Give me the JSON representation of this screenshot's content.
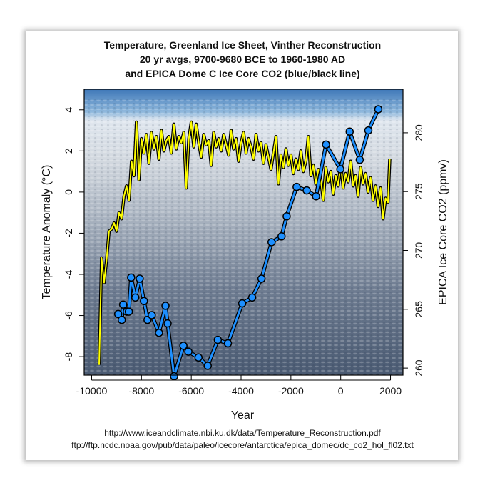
{
  "chart_data": {
    "type": "line",
    "title": [
      "Temperature, Greenland Ice Sheet, Vinther Reconstruction",
      "20 yr avgs, 9700-9680 BCE to 1960-1980 AD",
      "and EPICA Dome C Ice Core CO2 (blue/black line)"
    ],
    "xlabel": "Year",
    "ylabel_left": "Temperature Anomaly (°C)",
    "ylabel_right": "EPICA Ice Core CO2 (ppmv)",
    "xlim": [
      -10300,
      2500
    ],
    "ylim_left": [
      -8.9,
      5.0
    ],
    "ylim_right": [
      259.4,
      283.7
    ],
    "xticks": [
      -10000,
      -8000,
      -6000,
      -4000,
      -2000,
      0,
      2000
    ],
    "xtick_labels": [
      "-10000",
      "-8000",
      "-6000",
      "-4000",
      "-2000",
      "0",
      "2000"
    ],
    "yticks_left": [
      -8,
      -6,
      -4,
      -2,
      0,
      2,
      4
    ],
    "ytick_labels_left": [
      "-8",
      "-6",
      "-4",
      "-2",
      "0",
      "2",
      "4"
    ],
    "yticks_right": [
      260,
      265,
      270,
      275,
      280
    ],
    "ytick_labels_right": [
      "260",
      "265",
      "270",
      "275",
      "280"
    ],
    "grid": false,
    "background": "photo of Greenland ice sheet under blue sky",
    "series": [
      {
        "axis": "left",
        "color": "#FFFF00",
        "outline": "#000000",
        "x": [
          -9700,
          -9600,
          -9500,
          -9400,
          -9300,
          -9200,
          -9100,
          -9000,
          -8900,
          -8800,
          -8700,
          -8600,
          -8500,
          -8400,
          -8300,
          -8200,
          -8100,
          -8000,
          -7900,
          -7800,
          -7700,
          -7600,
          -7500,
          -7400,
          -7300,
          -7200,
          -7100,
          -7000,
          -6900,
          -6800,
          -6700,
          -6600,
          -6500,
          -6400,
          -6300,
          -6200,
          -6100,
          -6000,
          -5900,
          -5800,
          -5700,
          -5600,
          -5500,
          -5400,
          -5300,
          -5200,
          -5100,
          -5000,
          -4900,
          -4800,
          -4700,
          -4600,
          -4500,
          -4400,
          -4300,
          -4200,
          -4100,
          -4000,
          -3900,
          -3800,
          -3700,
          -3600,
          -3500,
          -3400,
          -3300,
          -3200,
          -3100,
          -3000,
          -2900,
          -2800,
          -2700,
          -2600,
          -2500,
          -2400,
          -2300,
          -2200,
          -2100,
          -2000,
          -1900,
          -1800,
          -1700,
          -1600,
          -1500,
          -1400,
          -1300,
          -1200,
          -1100,
          -1000,
          -900,
          -800,
          -700,
          -600,
          -500,
          -400,
          -300,
          -200,
          -100,
          0,
          100,
          200,
          300,
          400,
          500,
          600,
          700,
          800,
          900,
          1000,
          1100,
          1200,
          1300,
          1400,
          1500,
          1600,
          1700,
          1800,
          1900,
          1970
        ],
        "y": [
          -8.4,
          -3.2,
          -4.4,
          -3.3,
          -1.9,
          -1.8,
          -1.5,
          -1.9,
          -1.0,
          -1.3,
          -0.2,
          0.3,
          -0.4,
          1.5,
          0.8,
          3.4,
          0.6,
          2.6,
          1.9,
          2.8,
          1.4,
          2.9,
          2.1,
          2.7,
          1.6,
          3.0,
          2.0,
          2.5,
          2.7,
          1.9,
          3.3,
          2.1,
          2.7,
          2.4,
          2.9,
          0.2,
          2.6,
          3.4,
          2.2,
          3.3,
          2.4,
          1.7,
          2.8,
          2.3,
          2.5,
          1.3,
          2.9,
          2.2,
          2.6,
          2.0,
          2.8,
          2.3,
          1.8,
          3.0,
          2.1,
          2.6,
          1.5,
          2.4,
          2.9,
          1.9,
          2.6,
          2.2,
          1.6,
          2.8,
          2.0,
          2.4,
          1.4,
          2.3,
          1.7,
          1.1,
          1.9,
          2.7,
          0.4,
          1.8,
          1.2,
          2.1,
          1.3,
          1.8,
          0.9,
          1.6,
          1.1,
          2.0,
          1.0,
          1.5,
          2.7,
          0.8,
          1.3,
          0.4,
          1.1,
          0.6,
          -0.4,
          1.2,
          0.5,
          1.0,
          -0.1,
          0.8,
          0.3,
          1.4,
          0.2,
          0.9,
          0.5,
          1.5,
          0.3,
          0.8,
          -0.2,
          1.2,
          0.4,
          0.9,
          0.0,
          0.7,
          -0.4,
          0.3,
          -0.7,
          0.2,
          -1.3,
          -0.3,
          -0.5,
          1.6
        ]
      },
      {
        "axis": "right",
        "color": "#1E90FF",
        "outline": "#000000",
        "markers": true,
        "x": [
          -8935,
          -8790,
          -8735,
          -8590,
          -8505,
          -8415,
          -8245,
          -8070,
          -7900,
          -7755,
          -7585,
          -7295,
          -7035,
          -6950,
          -6690,
          -6315,
          -6115,
          -5710,
          -5340,
          -4935,
          -4530,
          -3955,
          -3555,
          -3180,
          -2775,
          -2375,
          -2170,
          -1770,
          -1365,
          -990,
          -590,
          -15,
          360,
          765,
          1110,
          1510
        ],
        "y": [
          264.6,
          264.1,
          265.4,
          264.8,
          264.8,
          267.7,
          266.0,
          267.6,
          265.7,
          264.1,
          264.5,
          263.0,
          265.3,
          263.8,
          259.3,
          261.9,
          261.4,
          260.9,
          260.2,
          262.4,
          262.1,
          265.5,
          266.0,
          267.6,
          270.7,
          271.2,
          272.9,
          275.4,
          275.1,
          274.6,
          279.0,
          276.9,
          280.1,
          277.7,
          280.2,
          282.0
        ]
      }
    ]
  },
  "footer": {
    "source1": "http://www.iceandclimate.nbi.ku.dk/data/Temperature_Reconstruction.pdf",
    "source2": "ftp://ftp.ncdc.noaa.gov/pub/data/paleo/icecore/antarctica/epica_domec/dc_co2_hol_fl02.txt"
  }
}
